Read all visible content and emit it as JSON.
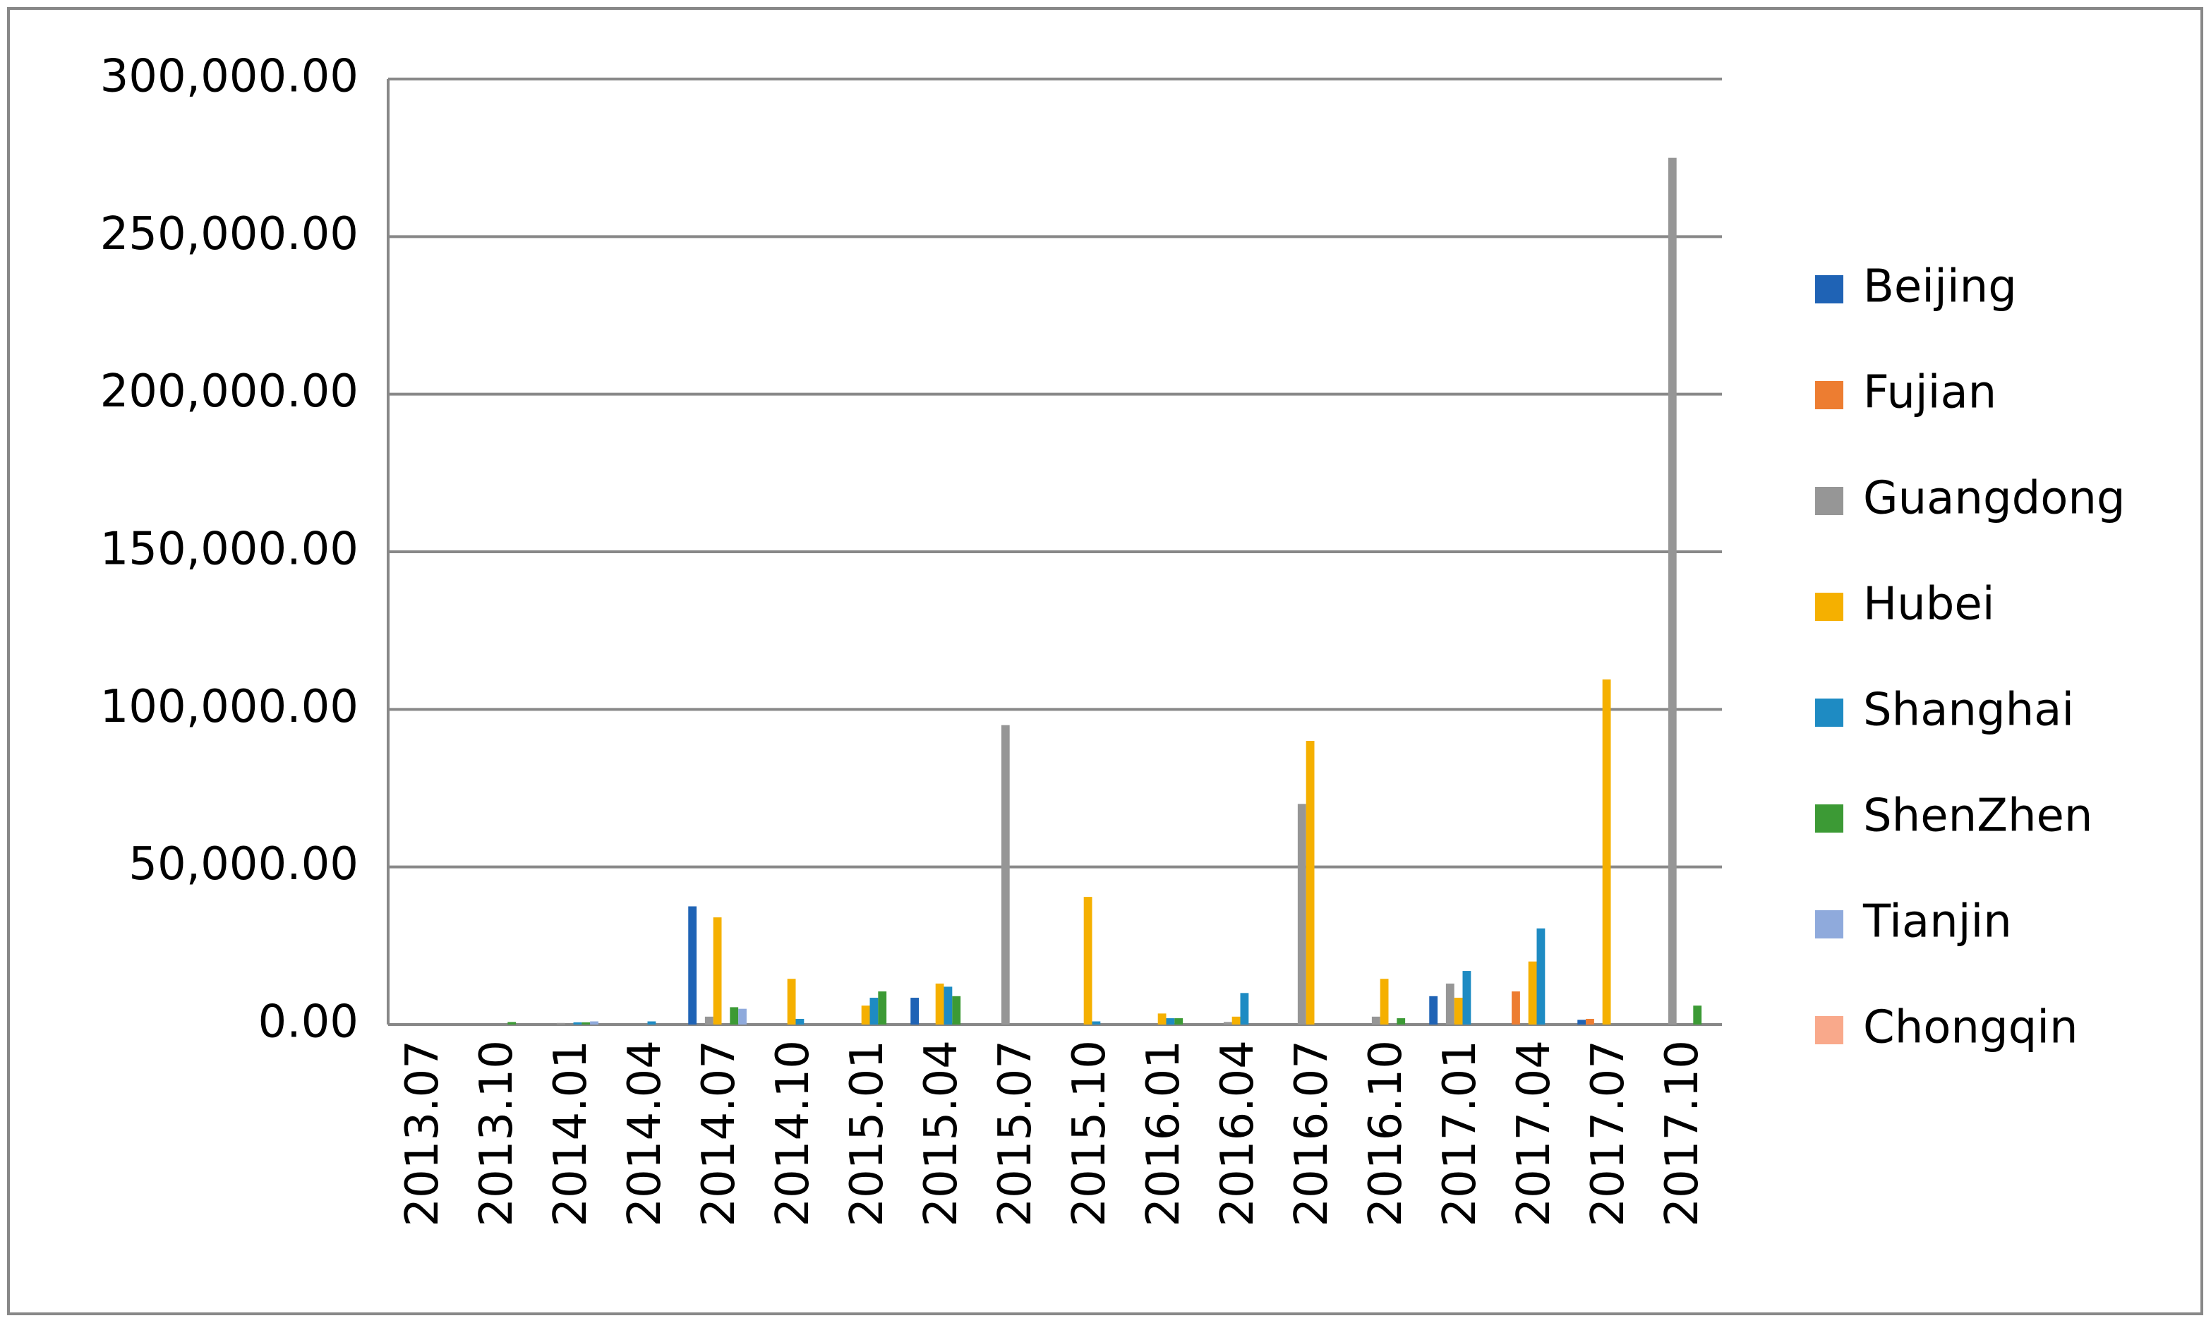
{
  "chart_data": {
    "type": "bar",
    "categories": [
      "2013.07",
      "2013.10",
      "2014.01",
      "2014.04",
      "2014.07",
      "2014.10",
      "2015.01",
      "2015.04",
      "2015.07",
      "2015.10",
      "2016.01",
      "2016.04",
      "2016.07",
      "2016.10",
      "2017.01",
      "2017.04",
      "2017.07",
      "2017.10"
    ],
    "series": [
      {
        "name": "Beijing",
        "color": "#1f63b5",
        "values": [
          0,
          0,
          0,
          0,
          37500,
          0,
          0,
          8500,
          0,
          0,
          0,
          0,
          0,
          0,
          9000,
          0,
          1500,
          0
        ]
      },
      {
        "name": "Fujian",
        "color": "#ed7d31",
        "values": [
          0,
          0,
          0,
          0,
          0,
          0,
          0,
          0,
          0,
          0,
          0,
          0,
          0,
          0,
          0,
          10500,
          1800,
          0
        ]
      },
      {
        "name": "Guangdong",
        "color": "#969696",
        "values": [
          0,
          0,
          500,
          0,
          2500,
          0,
          0,
          0,
          95000,
          0,
          0,
          800,
          70000,
          2500,
          13000,
          0,
          0,
          275000
        ]
      },
      {
        "name": "Hubei",
        "color": "#f5b000",
        "values": [
          0,
          0,
          0,
          0,
          34000,
          14500,
          6000,
          13000,
          0,
          40500,
          3500,
          2500,
          90000,
          14500,
          8500,
          20000,
          109500,
          0
        ]
      },
      {
        "name": "Shanghai",
        "color": "#1e8bc3",
        "values": [
          0,
          0,
          700,
          1000,
          0,
          1800,
          8500,
          12000,
          0,
          1000,
          2000,
          10000,
          0,
          0,
          17000,
          30500,
          0,
          0
        ]
      },
      {
        "name": "ShenZhen",
        "color": "#3c9a35",
        "values": [
          0,
          800,
          700,
          0,
          5500,
          0,
          10500,
          9000,
          0,
          0,
          2000,
          0,
          0,
          2000,
          0,
          0,
          0,
          6000
        ]
      },
      {
        "name": "Tianjin",
        "color": "#8faadc",
        "values": [
          0,
          0,
          1000,
          0,
          5000,
          0,
          0,
          0,
          0,
          0,
          0,
          0,
          0,
          0,
          0,
          0,
          0,
          0
        ]
      },
      {
        "name": "Chongqin",
        "color": "#f9a98b",
        "values": [
          0,
          0,
          0,
          0,
          0,
          0,
          0,
          0,
          0,
          0,
          0,
          0,
          0,
          0,
          0,
          0,
          0,
          0
        ]
      }
    ],
    "ylim": [
      0,
      300000
    ],
    "yticks": [
      {
        "value": 0,
        "label": "0.00"
      },
      {
        "value": 50000,
        "label": "50,000.00"
      },
      {
        "value": 100000,
        "label": "100,000.00"
      },
      {
        "value": 150000,
        "label": "150,000.00"
      },
      {
        "value": 200000,
        "label": "200,000.00"
      },
      {
        "value": 250000,
        "label": "250,000.00"
      },
      {
        "value": 300000,
        "label": "300,000.00"
      }
    ],
    "grid": true,
    "legend": "right"
  }
}
